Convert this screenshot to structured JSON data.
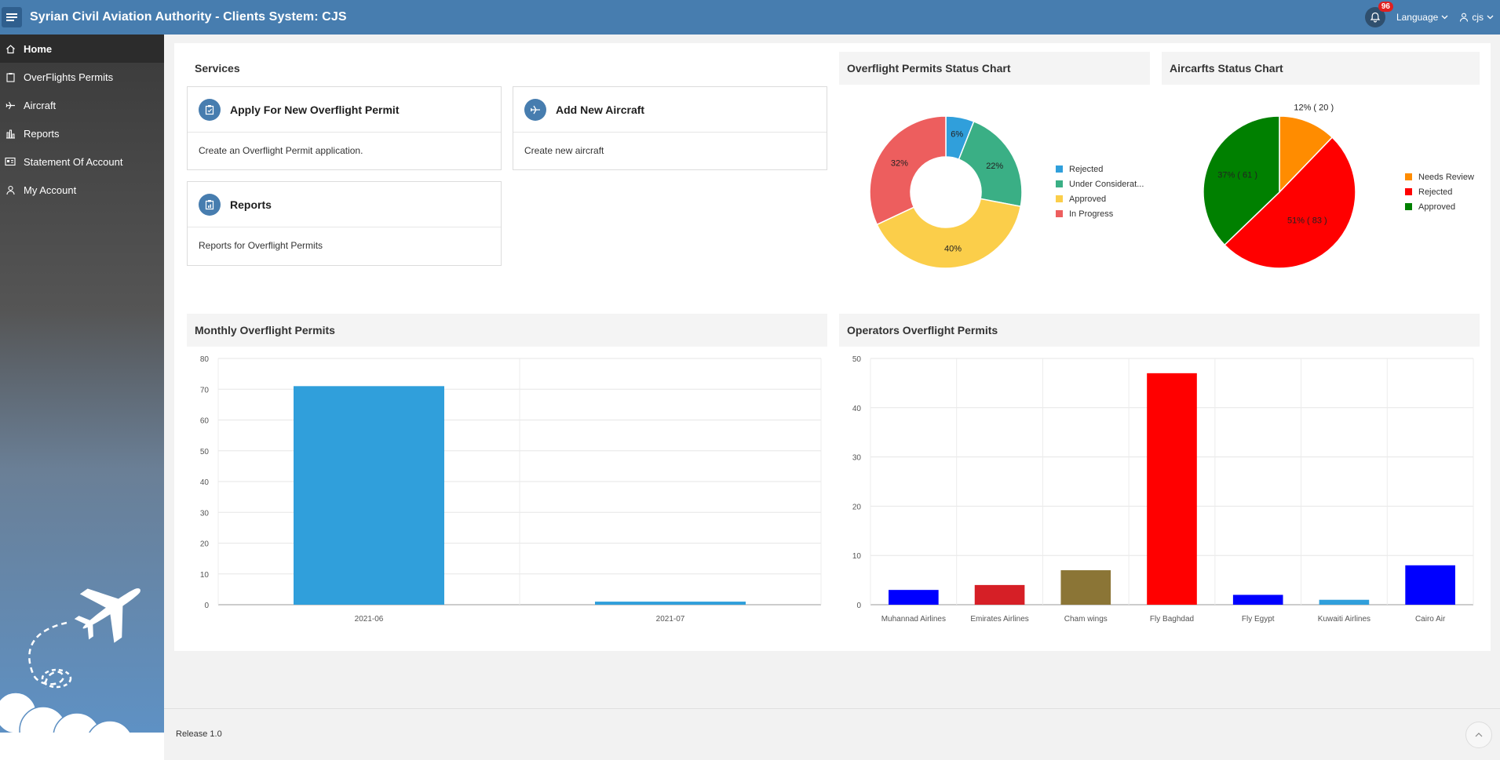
{
  "header": {
    "title": "Syrian Civil Aviation Authority - Clients System: CJS",
    "notification_count": "96",
    "language_label": "Language",
    "user_label": "cjs"
  },
  "sidebar": {
    "items": [
      {
        "label": "Home",
        "icon": "home-icon",
        "active": true
      },
      {
        "label": "OverFlights Permits",
        "icon": "clipboard-icon",
        "active": false
      },
      {
        "label": "Aircraft",
        "icon": "plane-icon",
        "active": false
      },
      {
        "label": "Reports",
        "icon": "bar-chart-icon",
        "active": false
      },
      {
        "label": "Statement Of Account",
        "icon": "statement-icon",
        "active": false
      },
      {
        "label": "My Account",
        "icon": "user-icon",
        "active": false
      }
    ]
  },
  "services": {
    "title": "Services",
    "cards": [
      {
        "title": "Apply For New Overflight Permit",
        "description": "Create an Overflight Permit application.",
        "icon": "clipboard-icon"
      },
      {
        "title": "Add New Aircraft",
        "description": "Create new aircraft",
        "icon": "plane-icon"
      },
      {
        "title": "Reports",
        "description": "Reports for Overflight Permits",
        "icon": "report-icon"
      }
    ]
  },
  "charts": {
    "permits_status_title": "Overflight Permits Status Chart",
    "aircraft_status_title": "Aircarfts Status Chart",
    "monthly_title": "Monthly Overflight Permits",
    "operators_title": "Operators Overflight Permits"
  },
  "chart_data": [
    {
      "type": "pie",
      "variant": "donut",
      "title": "Overflight Permits Status Chart",
      "categories": [
        "Rejected",
        "Under Considerat...",
        "Approved",
        "In Progress"
      ],
      "values": [
        6,
        22,
        40,
        32
      ],
      "labels": [
        "6%",
        "22%",
        "40%",
        "32%"
      ],
      "colors": [
        "#309fdb",
        "#3aaf85",
        "#fbce4a",
        "#ed5e5e"
      ],
      "legend": "right"
    },
    {
      "type": "pie",
      "title": "Aircarfts Status Chart",
      "categories": [
        "Needs Review",
        "Rejected",
        "Approved"
      ],
      "values": [
        20,
        83,
        61
      ],
      "labels": [
        "12% ( 20 )",
        "51% ( 83 )",
        "37% ( 61 )"
      ],
      "colors": [
        "#ff8c00",
        "#ff0000",
        "#008000"
      ],
      "legend": "right"
    },
    {
      "type": "bar",
      "title": "Monthly Overflight Permits",
      "categories": [
        "2021-06",
        "2021-07"
      ],
      "values": [
        71,
        1
      ],
      "colors": [
        "#309fdb",
        "#309fdb"
      ],
      "ylim": [
        0,
        80
      ],
      "yticks": [
        0,
        10,
        20,
        30,
        40,
        50,
        60,
        70,
        80
      ],
      "grid": true
    },
    {
      "type": "bar",
      "title": "Operators Overflight Permits",
      "categories": [
        "Muhannad Airlines",
        "Emirates Airlines",
        "Cham wings",
        "Fly Baghdad",
        "Fly Egypt",
        "Kuwaiti Airlines",
        "Cairo Air"
      ],
      "values": [
        3,
        4,
        7,
        47,
        2,
        1,
        8
      ],
      "colors": [
        "#0000ff",
        "#d61f26",
        "#8b7536",
        "#ff0000",
        "#0000ff",
        "#309fdb",
        "#0000ff"
      ],
      "ylim": [
        0,
        50
      ],
      "yticks": [
        0,
        10,
        20,
        30,
        40,
        50
      ],
      "grid": true
    }
  ],
  "footer": {
    "release": "Release 1.0"
  }
}
